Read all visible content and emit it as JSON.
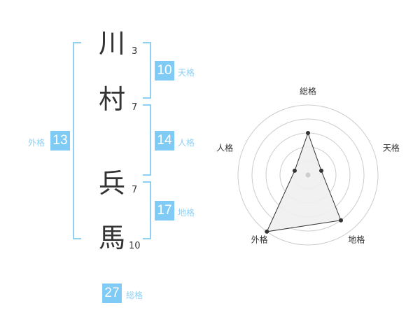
{
  "name": [
    {
      "char": "川",
      "strokes": "3"
    },
    {
      "char": "村",
      "strokes": "7"
    },
    {
      "char": "兵",
      "strokes": "7"
    },
    {
      "char": "馬",
      "strokes": "10"
    }
  ],
  "kaku": {
    "tenkaku": {
      "label": "天格",
      "value": "10"
    },
    "jinkaku": {
      "label": "人格",
      "value": "14"
    },
    "chikaku": {
      "label": "地格",
      "value": "17"
    },
    "gaikaku": {
      "label": "外格",
      "value": "13"
    },
    "soukaku": {
      "label": "総格",
      "value": "27"
    }
  },
  "chart_data": {
    "type": "radar",
    "axes": [
      "総格",
      "天格",
      "地格",
      "外格",
      "人格"
    ],
    "values": [
      3,
      1,
      4,
      5,
      1
    ],
    "range": [
      0,
      5
    ],
    "rings": 5,
    "colors": {
      "fill": "#f0f0f0",
      "line": "#333333",
      "grid": "#cccccc"
    }
  }
}
